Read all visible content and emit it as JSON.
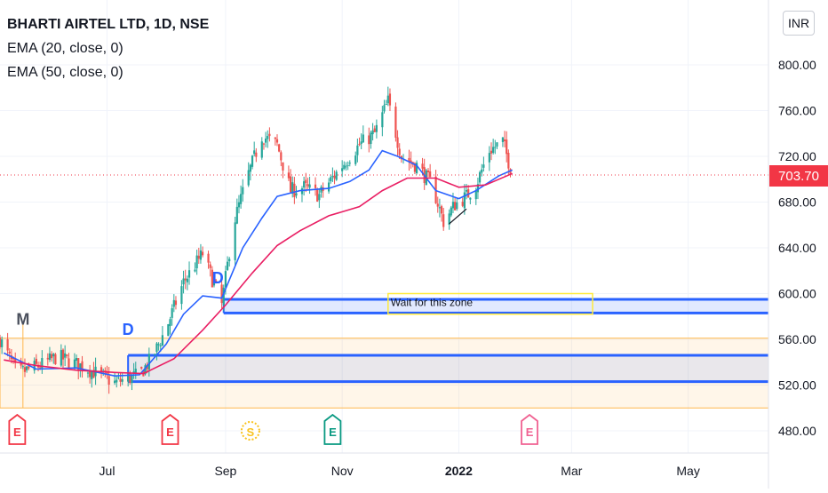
{
  "header": {
    "symbol_line": "BHARTI AIRTEL LTD, 1D, NSE",
    "ema20_label": "EMA (20, close, 0)",
    "ema50_label": "EMA (50, close, 0)",
    "currency": "INR",
    "last_price": "703.70"
  },
  "colors": {
    "up": "#26a69a",
    "down": "#ef5350",
    "ema20": "#2962ff",
    "ema50": "#e91e63",
    "zone_blue": "#2962ff",
    "zone_orange": "#ffb74d",
    "annotation_box": "#ffeb3b",
    "price_tag": "#f23645",
    "event_E_red": "#f23645",
    "event_E_green": "#089981",
    "event_S_yellow": "#f9c31f",
    "event_E_pink": "#f06292"
  },
  "annotations": {
    "zone_text": "Wait for this zone",
    "label_M": "M",
    "label_D1": "D",
    "label_D2": "D"
  },
  "events": [
    {
      "letter": "E",
      "icon": "earnings-icon",
      "date": "2021-05-15"
    },
    {
      "letter": "E",
      "icon": "earnings-icon",
      "date": "2021-08-03"
    },
    {
      "letter": "S",
      "icon": "split-icon",
      "date": "2021-09-14"
    },
    {
      "letter": "E",
      "icon": "earnings-icon",
      "date": "2021-10-27"
    },
    {
      "letter": "E",
      "icon": "earnings-icon",
      "date": "2022-02-07"
    }
  ],
  "chart_data": {
    "type": "candlestick",
    "title": "BHARTI AIRTEL LTD, 1D, NSE",
    "x_tick_labels": [
      "Jul",
      "Sep",
      "Nov",
      "2022",
      "Mar",
      "May"
    ],
    "x_tick_dates": [
      "2021-07-01",
      "2021-09-01",
      "2021-11-01",
      "2022-01-01",
      "2022-03-01",
      "2022-05-01"
    ],
    "y_tick_labels": [
      "800.00",
      "760.00",
      "720.00",
      "680.00",
      "640.00",
      "600.00",
      "560.00",
      "520.00",
      "480.00"
    ],
    "y_ticks": [
      800,
      760,
      720,
      680,
      640,
      600,
      560,
      520,
      480
    ],
    "ylim": [
      470,
      840
    ],
    "xlim": [
      "2021-05-06",
      "2022-06-12"
    ],
    "last_price": 703.7,
    "grid": true,
    "legend": "top-left",
    "series": [
      {
        "name": "EMA (20, close, 0)",
        "points": [
          [
            "2021-05-08",
            548
          ],
          [
            "2021-05-25",
            534
          ],
          [
            "2021-06-15",
            535
          ],
          [
            "2021-07-05",
            528
          ],
          [
            "2021-07-18",
            529
          ],
          [
            "2021-08-01",
            556
          ],
          [
            "2021-08-10",
            582
          ],
          [
            "2021-08-20",
            598
          ],
          [
            "2021-08-30",
            596
          ],
          [
            "2021-09-10",
            640
          ],
          [
            "2021-09-20",
            666
          ],
          [
            "2021-09-28",
            685
          ],
          [
            "2021-10-10",
            690
          ],
          [
            "2021-10-25",
            692
          ],
          [
            "2021-11-05",
            698
          ],
          [
            "2021-11-15",
            708
          ],
          [
            "2021-11-22",
            725
          ],
          [
            "2021-11-30",
            720
          ],
          [
            "2021-12-10",
            712
          ],
          [
            "2021-12-20",
            690
          ],
          [
            "2022-01-01",
            683
          ],
          [
            "2022-01-10",
            690
          ],
          [
            "2022-01-22",
            703
          ],
          [
            "2022-01-29",
            708
          ]
        ]
      },
      {
        "name": "EMA (50, close, 0)",
        "points": [
          [
            "2021-05-08",
            542
          ],
          [
            "2021-05-25",
            537
          ],
          [
            "2021-06-15",
            533
          ],
          [
            "2021-07-05",
            531
          ],
          [
            "2021-07-20",
            530
          ],
          [
            "2021-08-05",
            543
          ],
          [
            "2021-08-20",
            568
          ],
          [
            "2021-09-01",
            590
          ],
          [
            "2021-09-15",
            618
          ],
          [
            "2021-09-28",
            642
          ],
          [
            "2021-10-10",
            655
          ],
          [
            "2021-10-25",
            668
          ],
          [
            "2021-11-10",
            676
          ],
          [
            "2021-11-22",
            690
          ],
          [
            "2021-12-05",
            701
          ],
          [
            "2021-12-20",
            701
          ],
          [
            "2022-01-01",
            693
          ],
          [
            "2022-01-15",
            695
          ],
          [
            "2022-01-29",
            705
          ]
        ]
      }
    ],
    "candles_note": "daily OHLC approximated from the price path; closes follow the underlying path",
    "price_path": [
      [
        "2021-05-06",
        560
      ],
      [
        "2021-05-15",
        530
      ],
      [
        "2021-05-28",
        538
      ],
      [
        "2021-06-05",
        545
      ],
      [
        "2021-06-20",
        535
      ],
      [
        "2021-07-05",
        522
      ],
      [
        "2021-07-18",
        529
      ],
      [
        "2021-07-25",
        545
      ],
      [
        "2021-08-01",
        570
      ],
      [
        "2021-08-10",
        610
      ],
      [
        "2021-08-20",
        635
      ],
      [
        "2021-08-30",
        590
      ],
      [
        "2021-09-05",
        660
      ],
      [
        "2021-09-12",
        700
      ],
      [
        "2021-09-20",
        738
      ],
      [
        "2021-09-28",
        730
      ],
      [
        "2021-10-05",
        690
      ],
      [
        "2021-10-12",
        693
      ],
      [
        "2021-10-20",
        686
      ],
      [
        "2021-11-01",
        712
      ],
      [
        "2021-11-10",
        730
      ],
      [
        "2021-11-18",
        740
      ],
      [
        "2021-11-25",
        768
      ],
      [
        "2021-12-02",
        720
      ],
      [
        "2021-12-10",
        712
      ],
      [
        "2021-12-18",
        695
      ],
      [
        "2021-12-24",
        663
      ],
      [
        "2021-12-30",
        678
      ],
      [
        "2022-01-05",
        685
      ],
      [
        "2022-01-10",
        695
      ],
      [
        "2022-01-17",
        725
      ],
      [
        "2022-01-24",
        733
      ],
      [
        "2022-01-29",
        704
      ]
    ],
    "zones": [
      {
        "name": "upper blue zone",
        "top": 595,
        "bottom": 583,
        "start": "2021-08-31",
        "end": "2022-06-12"
      },
      {
        "name": "lower blue zone",
        "top": 546,
        "bottom": 523,
        "start": "2021-07-12",
        "end": "2022-06-12"
      },
      {
        "name": "orange zone",
        "top": 561,
        "bottom": 500,
        "start": "2021-05-06",
        "end": "2022-06-12"
      }
    ],
    "wait_box": {
      "top": 600,
      "bottom": 582,
      "start": "2021-11-25",
      "end": "2022-03-12"
    },
    "labels": [
      {
        "text": "M",
        "date": "2021-05-18",
        "price": 573
      },
      {
        "text": "D",
        "date": "2021-07-12",
        "price": 564
      },
      {
        "text": "D",
        "date": "2021-08-28",
        "price": 609
      }
    ]
  }
}
